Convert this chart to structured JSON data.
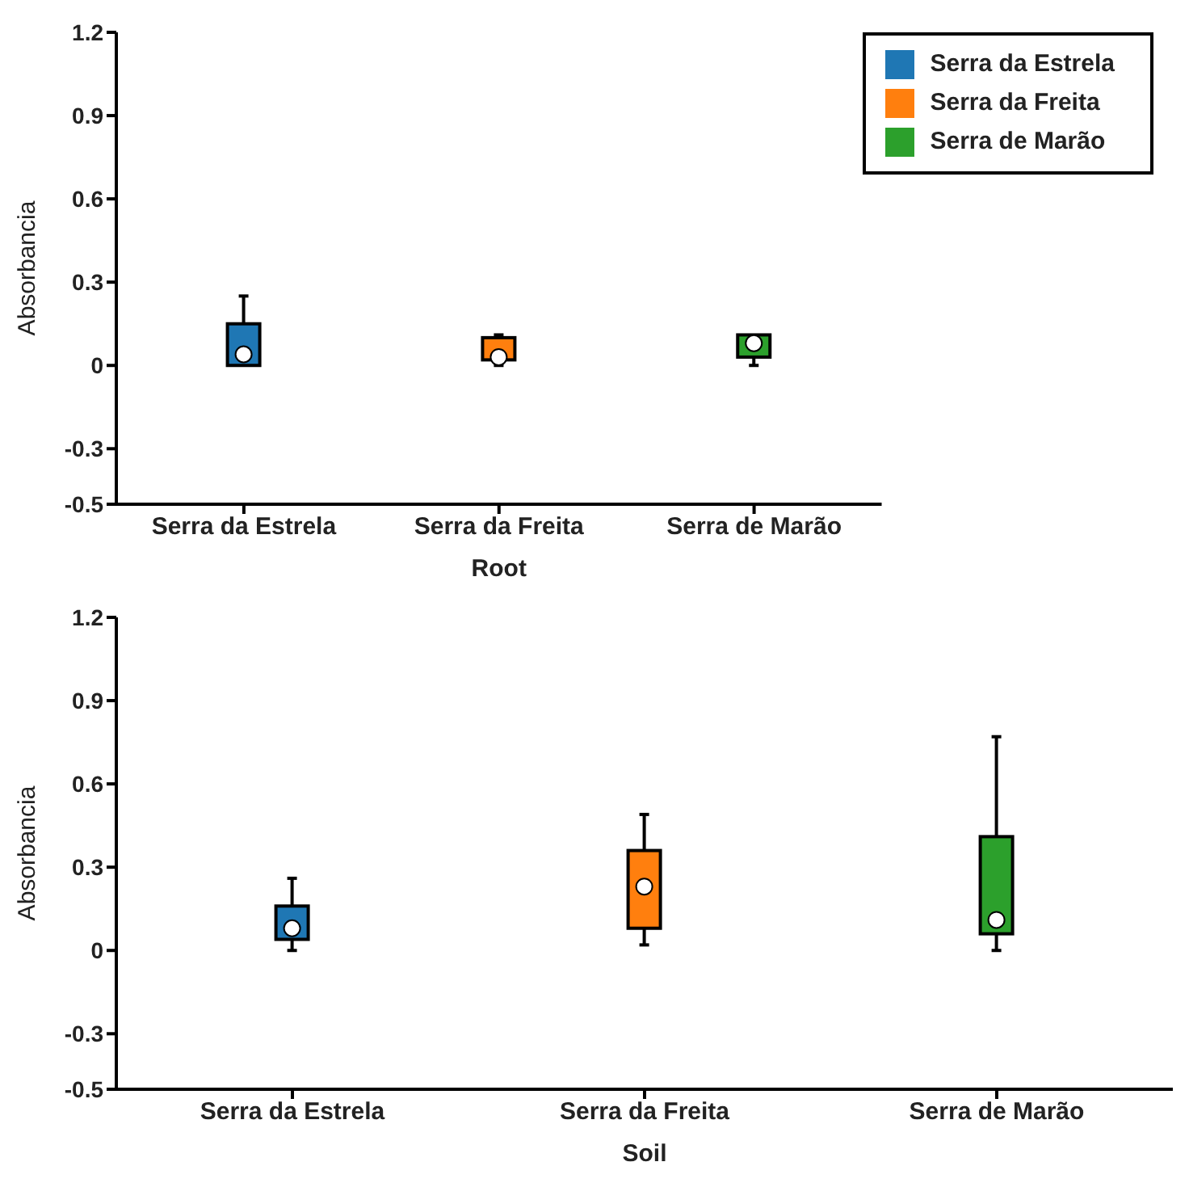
{
  "chart_data": [
    {
      "type": "box",
      "xlabel": "Root",
      "ylabel": "Absorbancia",
      "categories": [
        "Serra da Estrela",
        "Serra da Freita",
        "Serra de Marão"
      ],
      "series": [
        {
          "name": "Serra da Estrela",
          "color": "#1f77b4",
          "boxes": [
            {
              "low": 0,
              "q1": 0,
              "median": 0.04,
              "q3": 0.15,
              "high": 0.25
            },
            null,
            null
          ]
        },
        {
          "name": "Serra da Freita",
          "color": "#ff7f0e",
          "boxes": [
            null,
            {
              "low": 0,
              "q1": 0.02,
              "median": 0.03,
              "q3": 0.1,
              "high": 0.11
            },
            null
          ]
        },
        {
          "name": "Serra de Marão",
          "color": "#2ca02c",
          "boxes": [
            null,
            null,
            {
              "low": 0,
              "q1": 0.03,
              "median": 0.08,
              "q3": 0.11,
              "high": 0.11
            }
          ]
        }
      ],
      "ylim": [
        -0.5,
        1.2
      ],
      "yticks": [
        -0.5,
        -0.3,
        0,
        0.3,
        0.6,
        0.9,
        1.2
      ],
      "legend": "top right"
    },
    {
      "type": "box",
      "xlabel": "Soil",
      "ylabel": "Absorbancia",
      "categories": [
        "Serra da Estrela",
        "Serra da Freita",
        "Serra de Marão"
      ],
      "series": [
        {
          "color": "#1f77b4",
          "boxes": [
            {
              "low": 0,
              "q1": 0.04,
              "median": 0.08,
              "q3": 0.16,
              "high": 0.26
            },
            null,
            null
          ]
        },
        {
          "color": "#ff7f0e",
          "boxes": [
            null,
            {
              "low": 0.02,
              "q1": 0.08,
              "median": 0.23,
              "q3": 0.36,
              "high": 0.49
            },
            null
          ]
        },
        {
          "color": "#2ca02c",
          "boxes": [
            null,
            null,
            {
              "low": 0,
              "q1": 0.06,
              "median": 0.11,
              "q3": 0.41,
              "high": 0.77
            }
          ]
        }
      ],
      "ylim": [
        -0.5,
        1.2
      ],
      "yticks": [
        -0.5,
        -0.3,
        0,
        0.3,
        0.6,
        0.9,
        1.2
      ]
    }
  ]
}
